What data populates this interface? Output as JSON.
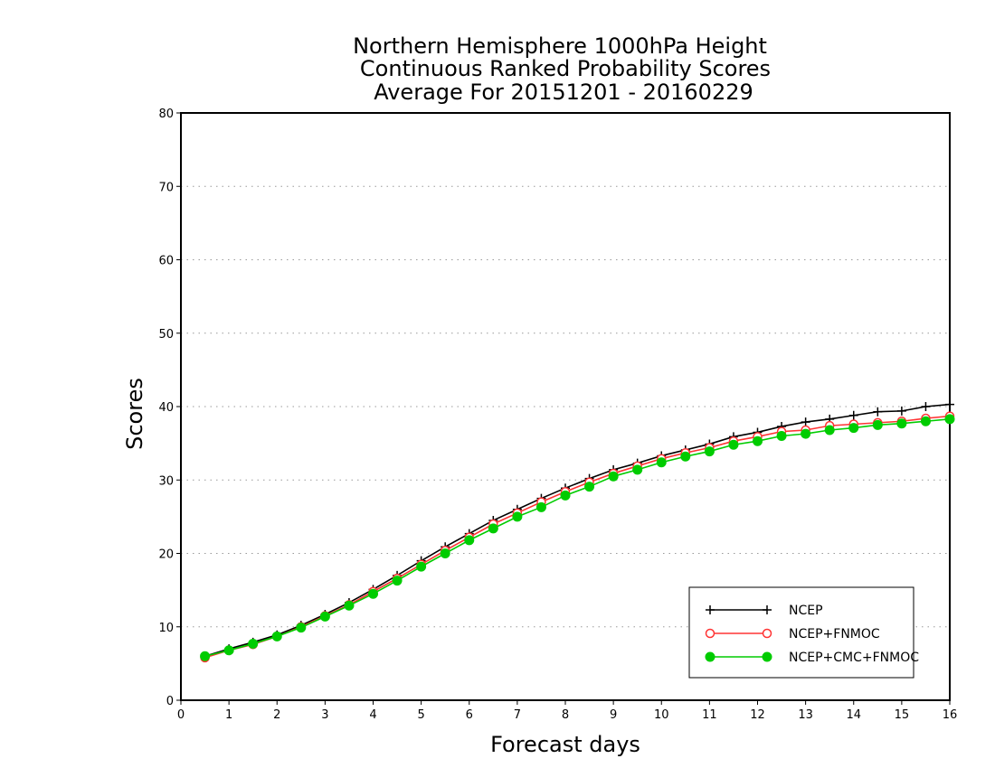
{
  "chart_data": {
    "type": "line",
    "title_lines": [
      "Northern Hemisphere 1000hPa Height",
      "Continuous Ranked Probability Scores",
      "Average For 20151201 - 20160229"
    ],
    "xlabel": "Forecast days",
    "ylabel": "Scores",
    "xlim": [
      0,
      16
    ],
    "ylim": [
      0,
      80
    ],
    "x_ticks": [
      0,
      1,
      2,
      3,
      4,
      5,
      6,
      7,
      8,
      9,
      10,
      11,
      12,
      13,
      14,
      15,
      16
    ],
    "y_ticks": [
      0,
      10,
      20,
      30,
      40,
      50,
      60,
      70,
      80
    ],
    "grid": "horizontal-dotted",
    "legend_position": "bottom-right",
    "x": [
      0.5,
      1,
      1.5,
      2,
      2.5,
      3,
      3.5,
      4,
      4.5,
      5,
      5.5,
      6,
      6.5,
      7,
      7.5,
      8,
      8.5,
      9,
      9.5,
      10,
      10.5,
      11,
      11.5,
      12,
      12.5,
      13,
      13.5,
      14,
      14.5,
      15,
      15.5,
      16
    ],
    "series": [
      {
        "name": "NCEP",
        "color": "#000000",
        "marker": "plus",
        "values": [
          6.0,
          7.0,
          7.9,
          8.9,
          10.2,
          11.7,
          13.3,
          15.1,
          17.0,
          19.0,
          20.9,
          22.7,
          24.5,
          26.0,
          27.5,
          28.9,
          30.2,
          31.4,
          32.3,
          33.3,
          34.1,
          34.9,
          35.9,
          36.5,
          37.3,
          37.9,
          38.3,
          38.8,
          39.3,
          39.4,
          40.0,
          40.3
        ]
      },
      {
        "name": "NCEP+FNMOC",
        "color": "#ff3333",
        "marker": "open-circle",
        "values": [
          5.8,
          6.8,
          7.6,
          8.7,
          10.0,
          11.5,
          13.0,
          14.8,
          16.6,
          18.5,
          20.4,
          22.2,
          24.0,
          25.5,
          27.0,
          28.4,
          29.7,
          30.9,
          31.9,
          32.9,
          33.7,
          34.4,
          35.3,
          35.9,
          36.6,
          36.8,
          37.4,
          37.6,
          37.8,
          38.0,
          38.4,
          38.7
        ]
      },
      {
        "name": "NCEP+CMC+FNMOC",
        "color": "#00cc00",
        "marker": "filled-circle",
        "values": [
          6.0,
          6.8,
          7.7,
          8.7,
          9.9,
          11.4,
          12.9,
          14.5,
          16.3,
          18.2,
          20.0,
          21.8,
          23.4,
          25.0,
          26.3,
          27.9,
          29.1,
          30.5,
          31.4,
          32.4,
          33.2,
          33.9,
          34.8,
          35.3,
          36.0,
          36.3,
          36.8,
          37.1,
          37.5,
          37.7,
          38.0,
          38.3
        ]
      }
    ]
  }
}
